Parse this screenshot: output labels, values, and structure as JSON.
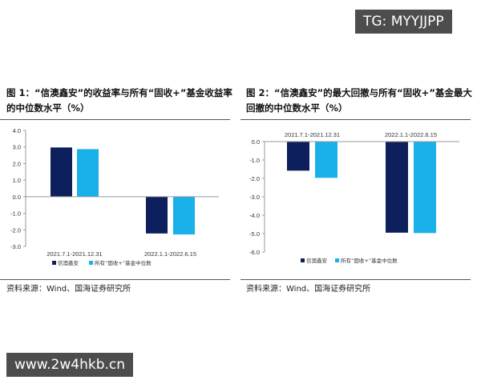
{
  "watermark_top": "TG: MYYJJPP",
  "watermark_bottom": "www.2w4hkb.cn",
  "colors": {
    "series1": "#0d1f5c",
    "series2": "#1ab0ea",
    "axis": "#999999"
  },
  "chart_data": [
    {
      "type": "bar",
      "title": "图 1：“信澳鑫安”的收益率与所有“固收+”基金收益率的中位数水平（%）",
      "categories": [
        "2021.7.1-2021.12.31",
        "2022.1.1-2022.6.15"
      ],
      "series": [
        {
          "name": "信澳鑫安",
          "values": [
            2.97,
            -2.22
          ]
        },
        {
          "name": "所有“固收+”基金中位数",
          "values": [
            2.87,
            -2.28
          ]
        }
      ],
      "ylim": [
        -3.0,
        4.0
      ],
      "yticks": [
        "4.0",
        "3.0",
        "2.0",
        "1.0",
        "0.0",
        "-1.0",
        "-2.0",
        "-3.0"
      ],
      "category_labels_position": "bottom",
      "legend": "bottom",
      "source": "资料来源：Wind、国海证券研究所"
    },
    {
      "type": "bar",
      "title": "图 2：“信澳鑫安”的最大回撤与所有“固收+”基金最大回撤的中位数水平（%）",
      "categories": [
        "2021.7.1-2021.12.31",
        "2022.1.1-2022.6.15"
      ],
      "series": [
        {
          "name": "信澳鑫安",
          "values": [
            -1.58,
            -4.95
          ]
        },
        {
          "name": "所有“固收+”基金中位数",
          "values": [
            -1.97,
            -4.97
          ]
        }
      ],
      "ylim": [
        -6.0,
        0.0
      ],
      "yticks": [
        "0.0",
        "-1.0",
        "-2.0",
        "-3.0",
        "-4.0",
        "-5.0",
        "-6.0"
      ],
      "category_labels_position": "top",
      "legend": "bottom",
      "source": "资料来源：Wind、国海证券研究所"
    }
  ]
}
